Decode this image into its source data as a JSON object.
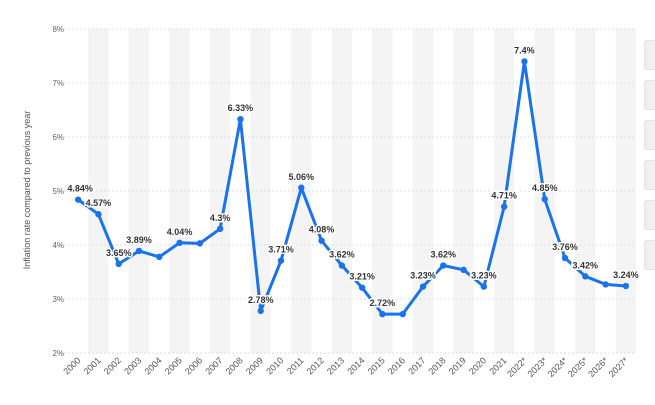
{
  "chart_data": {
    "type": "line",
    "title": "",
    "xlabel": "",
    "ylabel": "Inflation rate compared to previous year",
    "ylim": [
      2,
      8
    ],
    "yticks": [
      "2%",
      "3%",
      "4%",
      "5%",
      "6%",
      "7%",
      "8%"
    ],
    "categories": [
      "2000",
      "2001",
      "2002",
      "2003",
      "2004",
      "2005",
      "2006",
      "2007",
      "2008",
      "2009",
      "2010",
      "2011",
      "2012",
      "2013",
      "2014",
      "2015",
      "2016",
      "2017",
      "2018",
      "2019",
      "2020",
      "2021",
      "2022*",
      "2023*",
      "2024*",
      "2025*",
      "2026*",
      "2027*"
    ],
    "values": [
      4.84,
      4.57,
      3.65,
      3.89,
      3.78,
      4.04,
      4.03,
      4.3,
      6.33,
      2.78,
      3.71,
      5.06,
      4.08,
      3.62,
      3.21,
      2.72,
      2.72,
      3.23,
      3.62,
      3.54,
      3.23,
      4.71,
      7.4,
      4.85,
      3.76,
      3.42,
      3.27,
      3.24
    ],
    "labels": [
      "4.84%",
      "4.57%",
      "3.65%",
      "3.89%",
      "",
      "4.04%",
      "",
      "4.3%",
      "6.33%",
      "2.78%",
      "3.71%",
      "5.06%",
      "4.08%",
      "3.62%",
      "3.21%",
      "2.72%",
      "",
      "3.23%",
      "3.62%",
      "",
      "3.23%",
      "4.71%",
      "7.4%",
      "4.85%",
      "3.76%",
      "3.42%",
      "",
      "3.24%"
    ],
    "line_color": "#1a73e8",
    "band_color": "#f4f4f4",
    "grid": true
  }
}
